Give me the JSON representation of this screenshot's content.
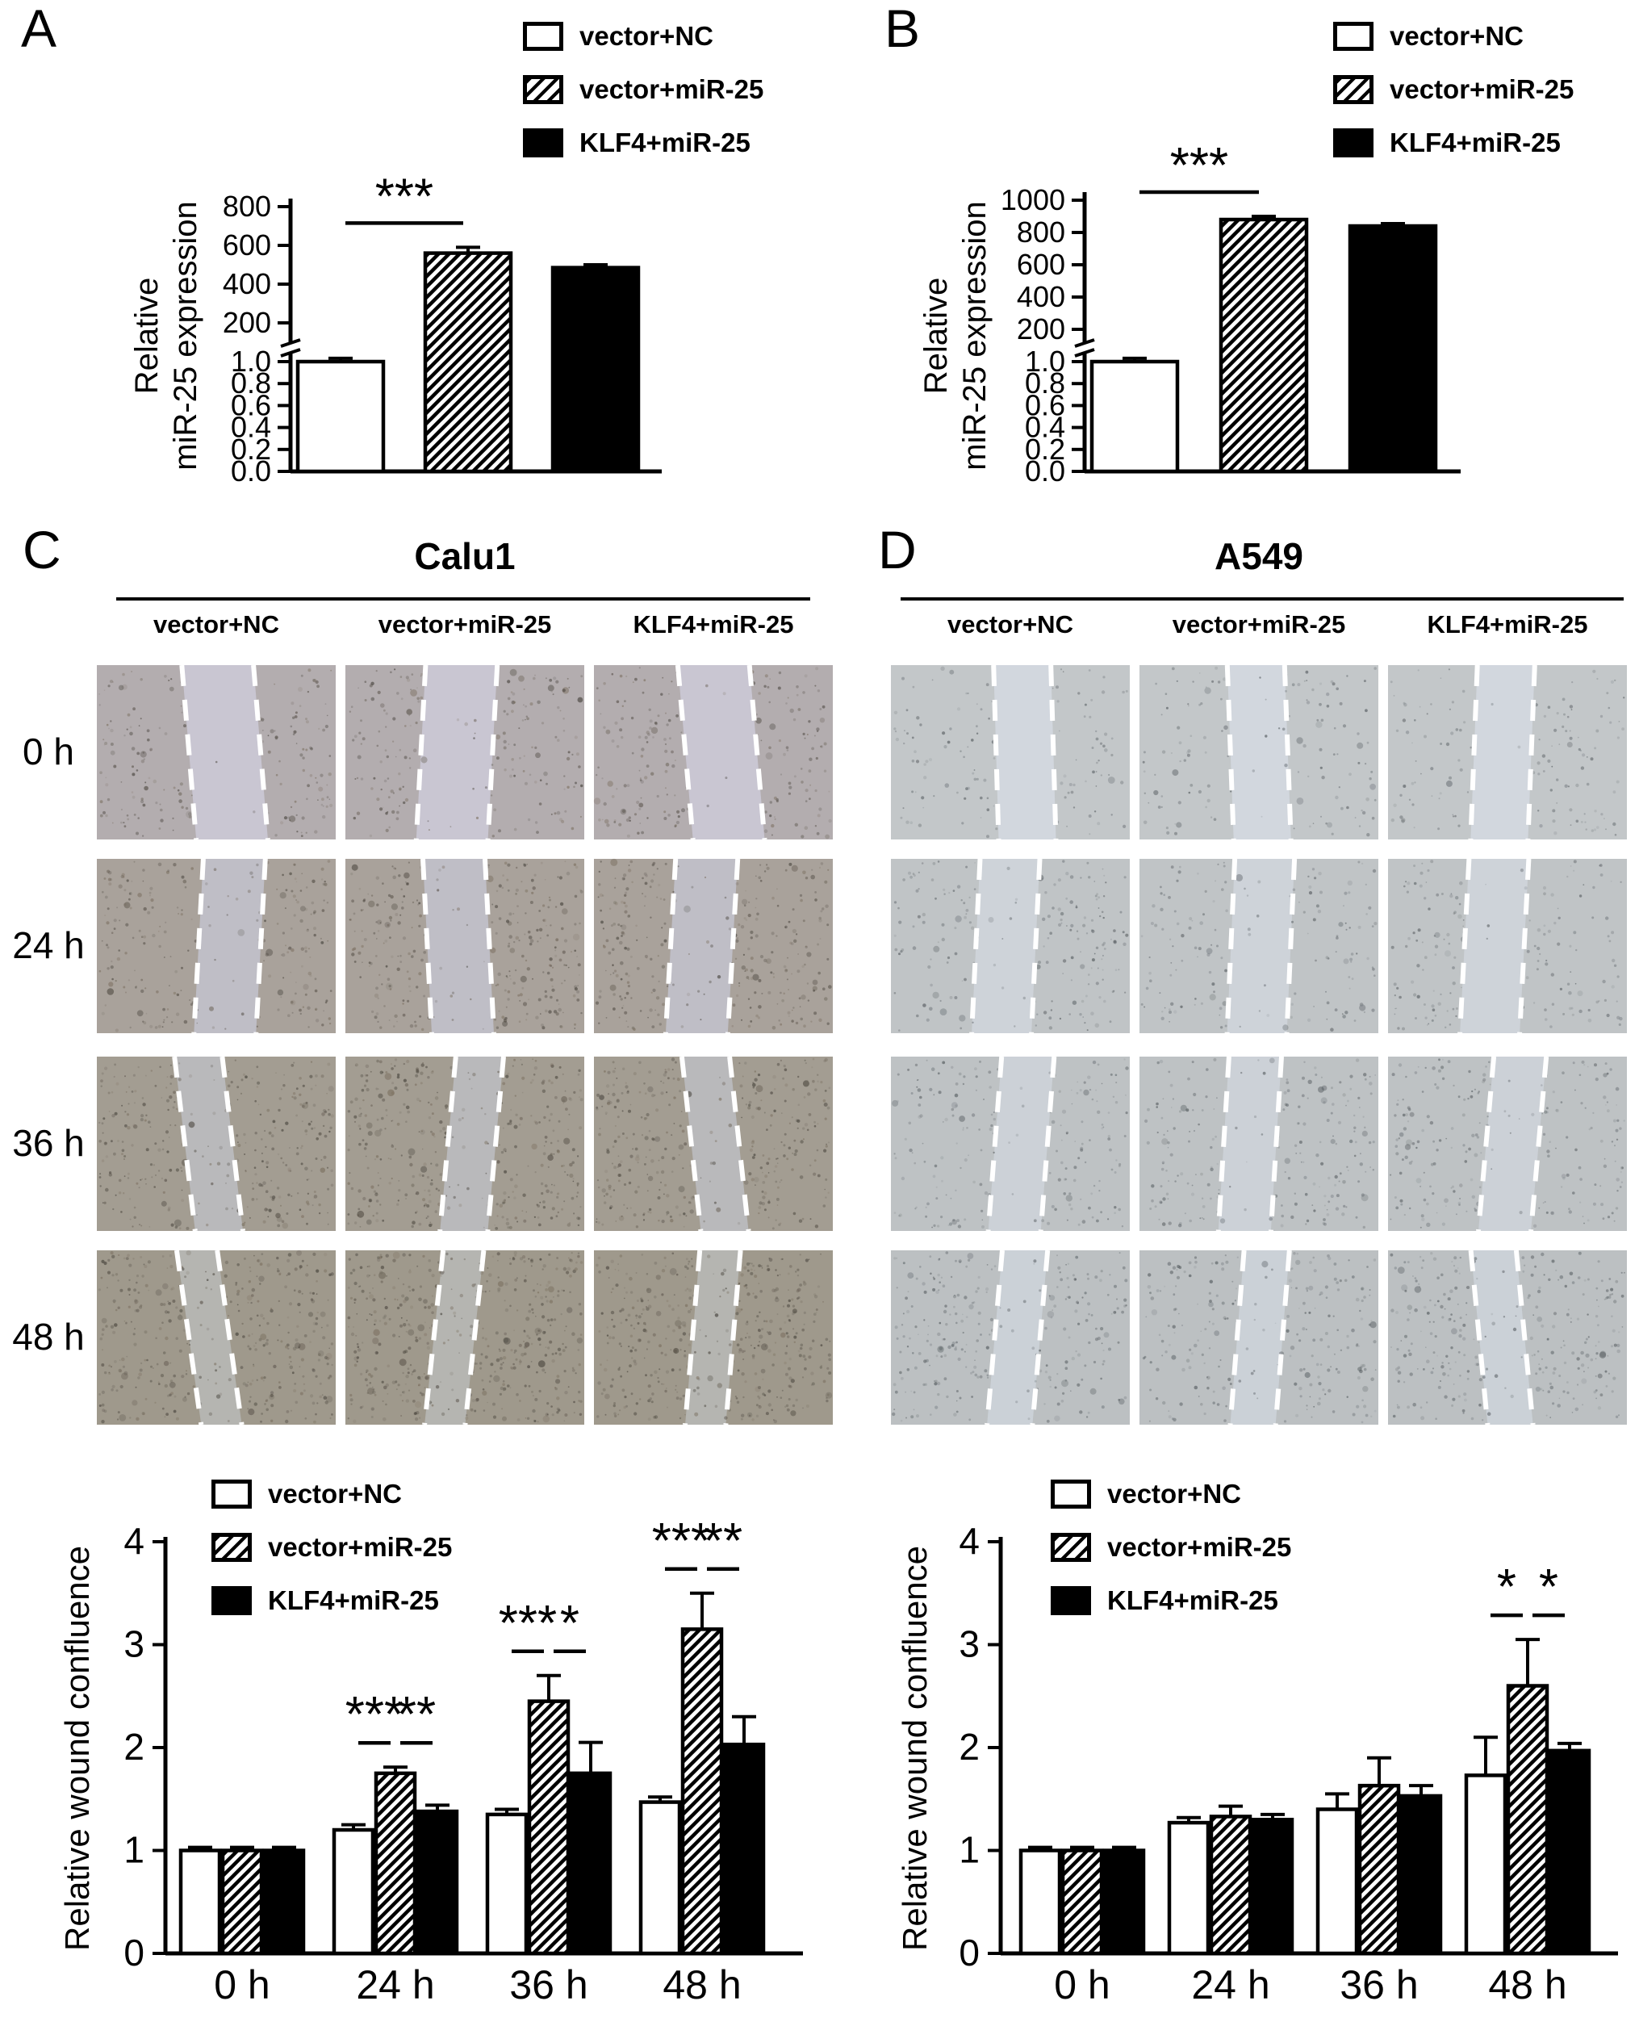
{
  "panels": {
    "A": {
      "label": "A"
    },
    "B": {
      "label": "B"
    },
    "C": {
      "label": "C"
    },
    "D": {
      "label": "D"
    }
  },
  "legend_items": [
    {
      "label": "vector+NC",
      "style": "white"
    },
    {
      "label": "vector+miR-25",
      "style": "hatched"
    },
    {
      "label": "KLF4+miR-25",
      "style": "black"
    }
  ],
  "wound": {
    "C": {
      "title": "Calu1",
      "columns": [
        "vector+NC",
        "vector+miR-25",
        "KLF4+miR-25"
      ],
      "rows": [
        {
          "time": "0 h",
          "gap": 0.3,
          "base": "#b3adaf",
          "band": "#c9c6d2",
          "tilt": 8
        },
        {
          "time": "24 h",
          "gap": 0.26,
          "base": "#a9a29b",
          "band": "#bfbec6",
          "tilt": 5
        },
        {
          "time": "36 h",
          "gap": 0.2,
          "base": "#a39d92",
          "band": "#b9b9bb",
          "tilt": 10
        },
        {
          "time": "48 h",
          "gap": 0.17,
          "base": "#9f998c",
          "band": "#b5b5b1",
          "tilt": 12
        }
      ]
    },
    "D": {
      "title": "A549",
      "columns": [
        "vector+NC",
        "vector+miR-25",
        "KLF4+miR-25"
      ],
      "rows": [
        {
          "time": "0 h",
          "gap": 0.24,
          "base": "#c3c7c9",
          "band": "#d2d7de",
          "tilt": 4
        },
        {
          "time": "24 h",
          "gap": 0.25,
          "base": "#c0c4c6",
          "band": "#ced3d9",
          "tilt": 6
        },
        {
          "time": "36 h",
          "gap": 0.22,
          "base": "#bec2c4",
          "band": "#ccd1d7",
          "tilt": 8
        },
        {
          "time": "48 h",
          "gap": 0.19,
          "base": "#bcc0c2",
          "band": "#cbd1d7",
          "tilt": 10
        }
      ]
    }
  },
  "chart_data": [
    {
      "id": "A",
      "type": "bar",
      "panel": "A",
      "broken_axis": true,
      "ylabel_lines": [
        "Relative",
        "miR-25 expression"
      ],
      "categories": [
        "vector+NC",
        "vector+miR-25",
        "KLF4+miR-25"
      ],
      "styles": [
        "white",
        "hatched",
        "black"
      ],
      "values": [
        1.0,
        560,
        485
      ],
      "errors": [
        0.03,
        30,
        15
      ],
      "lower_ticks": [
        "0.0",
        "0.2",
        "0.4",
        "0.6",
        "0.8",
        "1.0"
      ],
      "upper_ticks": [
        200,
        400,
        600,
        800
      ],
      "upper_max": 800,
      "significance": [
        {
          "bars": [
            0,
            1
          ],
          "label": "***"
        }
      ]
    },
    {
      "id": "B",
      "type": "bar",
      "panel": "B",
      "broken_axis": true,
      "ylabel_lines": [
        "Relative",
        "miR-25 expression"
      ],
      "categories": [
        "vector+NC",
        "vector+miR-25",
        "KLF4+miR-25"
      ],
      "styles": [
        "white",
        "hatched",
        "black"
      ],
      "values": [
        1.0,
        880,
        840
      ],
      "errors": [
        0.03,
        20,
        15
      ],
      "lower_ticks": [
        "0.0",
        "0.2",
        "0.4",
        "0.6",
        "0.8",
        "1.0"
      ],
      "upper_ticks": [
        200,
        400,
        600,
        800,
        1000
      ],
      "upper_max": 1000,
      "significance": [
        {
          "bars": [
            0,
            1
          ],
          "label": "***"
        }
      ]
    },
    {
      "id": "C_wound",
      "type": "grouped_bar",
      "panel": "C",
      "ylabel": "Relative wound confluence",
      "categories": [
        "0 h",
        "24 h",
        "36 h",
        "48 h"
      ],
      "ylim": [
        0,
        4
      ],
      "yticks": [
        0,
        1,
        2,
        3,
        4
      ],
      "series": [
        {
          "name": "vector+NC",
          "style": "white",
          "values": [
            1.0,
            1.2,
            1.35,
            1.47
          ],
          "errors": [
            0.03,
            0.05,
            0.05,
            0.05
          ]
        },
        {
          "name": "vector+miR-25",
          "style": "hatched",
          "values": [
            1.0,
            1.75,
            2.45,
            3.15
          ],
          "errors": [
            0.03,
            0.06,
            0.25,
            0.35
          ]
        },
        {
          "name": "KLF4+miR-25",
          "style": "black",
          "values": [
            1.0,
            1.38,
            1.75,
            2.03
          ],
          "errors": [
            0.03,
            0.06,
            0.3,
            0.27
          ]
        }
      ],
      "significance": [
        {
          "category": 1,
          "bars": [
            0,
            1
          ],
          "label": "***"
        },
        {
          "category": 1,
          "bars": [
            1,
            2
          ],
          "label": "**"
        },
        {
          "category": 2,
          "bars": [
            0,
            1
          ],
          "label": "***"
        },
        {
          "category": 2,
          "bars": [
            1,
            2
          ],
          "label": "*"
        },
        {
          "category": 3,
          "bars": [
            0,
            1
          ],
          "label": "***"
        },
        {
          "category": 3,
          "bars": [
            1,
            2
          ],
          "label": "**"
        }
      ]
    },
    {
      "id": "D_wound",
      "type": "grouped_bar",
      "panel": "D",
      "ylabel": "Relative wound confluence",
      "categories": [
        "0 h",
        "24 h",
        "36 h",
        "48 h"
      ],
      "ylim": [
        0,
        4
      ],
      "yticks": [
        0,
        1,
        2,
        3,
        4
      ],
      "series": [
        {
          "name": "vector+NC",
          "style": "white",
          "values": [
            1.0,
            1.27,
            1.4,
            1.73
          ],
          "errors": [
            0.03,
            0.05,
            0.15,
            0.37
          ]
        },
        {
          "name": "vector+miR-25",
          "style": "hatched",
          "values": [
            1.0,
            1.33,
            1.63,
            2.6
          ],
          "errors": [
            0.03,
            0.1,
            0.27,
            0.45
          ]
        },
        {
          "name": "KLF4+miR-25",
          "style": "black",
          "values": [
            1.0,
            1.3,
            1.53,
            1.97
          ],
          "errors": [
            0.03,
            0.05,
            0.1,
            0.07
          ]
        }
      ],
      "significance": [
        {
          "category": 3,
          "bars": [
            0,
            1
          ],
          "label": "*"
        },
        {
          "category": 3,
          "bars": [
            1,
            2
          ],
          "label": "*"
        }
      ]
    }
  ],
  "colors": {
    "foreground": "#000000",
    "background": "#ffffff"
  }
}
